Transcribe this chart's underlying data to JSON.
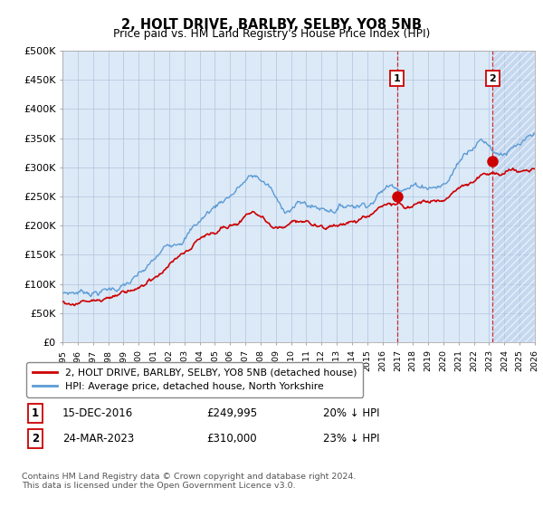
{
  "title": "2, HOLT DRIVE, BARLBY, SELBY, YO8 5NB",
  "subtitle": "Price paid vs. HM Land Registry's House Price Index (HPI)",
  "ylim": [
    0,
    500000
  ],
  "yticks": [
    0,
    50000,
    100000,
    150000,
    200000,
    250000,
    300000,
    350000,
    400000,
    450000,
    500000
  ],
  "ytick_labels": [
    "£0",
    "£50K",
    "£100K",
    "£150K",
    "£200K",
    "£250K",
    "£300K",
    "£350K",
    "£400K",
    "£450K",
    "£500K"
  ],
  "x_start_year": 1995,
  "x_end_year": 2026,
  "hpi_color": "#5b9bd5",
  "price_color": "#cc0000",
  "marker1_date": 2016.96,
  "marker1_price": 249995,
  "marker1_label": "15-DEC-2016",
  "marker1_pct": "20% ↓ HPI",
  "marker2_date": 2023.23,
  "marker2_price": 310000,
  "marker2_label": "24-MAR-2023",
  "marker2_pct": "23% ↓ HPI",
  "legend_property": "2, HOLT DRIVE, BARLBY, SELBY, YO8 5NB (detached house)",
  "legend_hpi": "HPI: Average price, detached house, North Yorkshire",
  "footnote": "Contains HM Land Registry data © Crown copyright and database right 2024.\nThis data is licensed under the Open Government Licence v3.0.",
  "background_color": "#dce9f7",
  "hatch_color": "#c5d8f0",
  "plot_bg_color": "#ffffff",
  "grid_color": "#b0c4de"
}
